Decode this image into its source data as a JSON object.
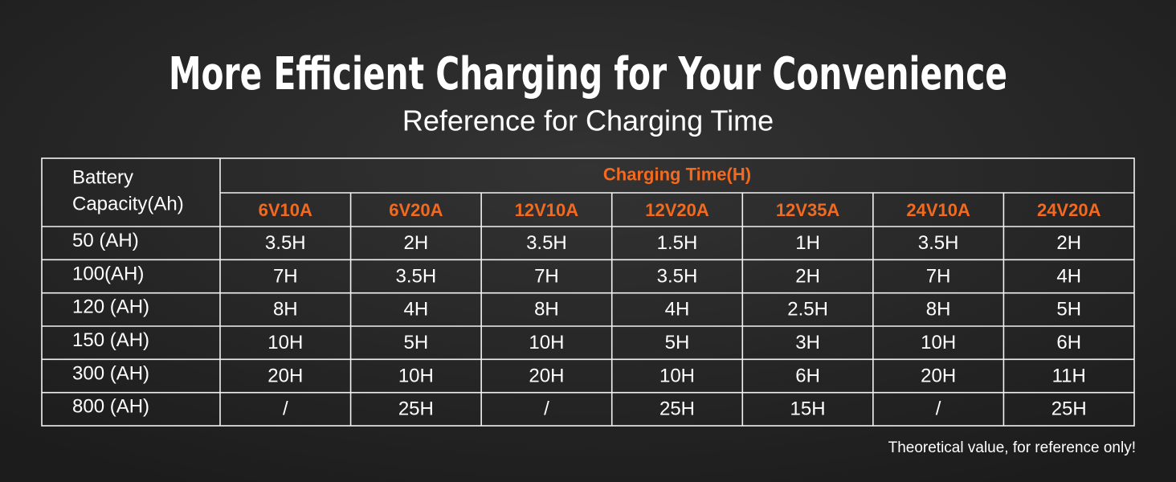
{
  "title": "More Efficient Charging for Your Convenience",
  "subtitle": "Reference for Charging Time",
  "table": {
    "corner_header": [
      "Battery",
      "Capacity(Ah)"
    ],
    "group_header": "Charging Time(H)",
    "columns": [
      "6V10A",
      "6V20A",
      "12V10A",
      "12V20A",
      "12V35A",
      "24V10A",
      "24V20A"
    ],
    "rows": [
      {
        "label": "50 (AH)",
        "cells": [
          "3.5H",
          "2H",
          "3.5H",
          "1.5H",
          "1H",
          "3.5H",
          "2H"
        ]
      },
      {
        "label": "100(AH)",
        "cells": [
          "7H",
          "3.5H",
          "7H",
          "3.5H",
          "2H",
          "7H",
          "4H"
        ]
      },
      {
        "label": "120 (AH)",
        "cells": [
          "8H",
          "4H",
          "8H",
          "4H",
          "2.5H",
          "8H",
          "5H"
        ]
      },
      {
        "label": "150 (AH)",
        "cells": [
          "10H",
          "5H",
          "10H",
          "5H",
          "3H",
          "10H",
          "6H"
        ]
      },
      {
        "label": "300 (AH)",
        "cells": [
          "20H",
          "10H",
          "20H",
          "10H",
          "6H",
          "20H",
          "11H"
        ]
      },
      {
        "label": "800 (AH)",
        "cells": [
          "/",
          "25H",
          "/",
          "25H",
          "15H",
          "/",
          "25H"
        ]
      }
    ]
  },
  "footnote": "Theoretical value, for reference only!"
}
